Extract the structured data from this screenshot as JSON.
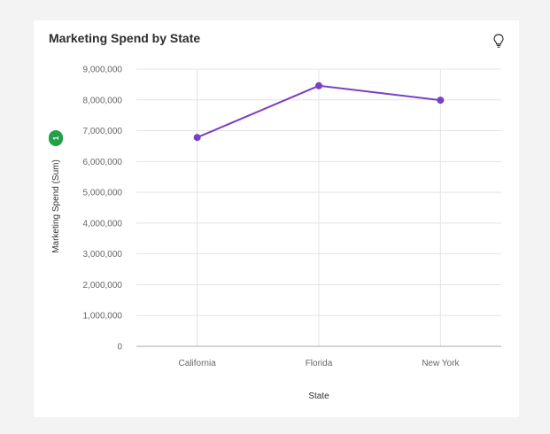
{
  "card": {
    "title": "Marketing Spend by State",
    "badge": "1"
  },
  "icons": {
    "insight": "lightbulb-icon"
  },
  "colors": {
    "line": "#7b3fc4",
    "badge": "#24a148",
    "grid": "#e4e4e4",
    "axis": "#aaaaaa"
  },
  "chart_data": {
    "type": "line",
    "title": "Marketing Spend by State",
    "xlabel": "State",
    "ylabel": "Marketing Spend (Sum)",
    "categories": [
      "California",
      "Florida",
      "New York"
    ],
    "series": [
      {
        "values": [
          6780000,
          8460000,
          7990000
        ]
      }
    ],
    "ylim": [
      0,
      9000000
    ],
    "yticks": [
      0,
      1000000,
      2000000,
      3000000,
      4000000,
      5000000,
      6000000,
      7000000,
      8000000,
      9000000
    ],
    "ytick_labels": [
      "0",
      "1,000,000",
      "2,000,000",
      "3,000,000",
      "4,000,000",
      "5,000,000",
      "6,000,000",
      "7,000,000",
      "8,000,000",
      "9,000,000"
    ],
    "grid": true,
    "legend": "none"
  }
}
